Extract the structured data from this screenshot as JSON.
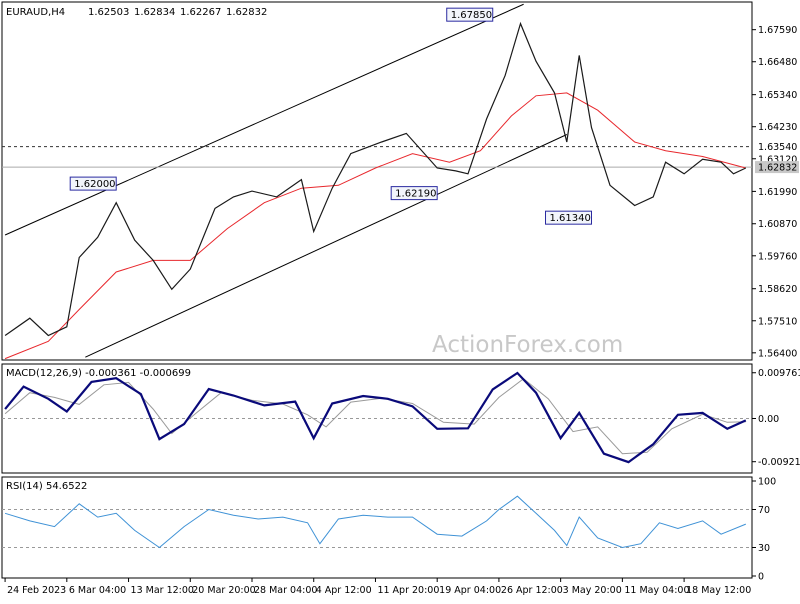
{
  "chart_data": {
    "type": "line",
    "header": {
      "symbol": "EURAUD,H4",
      "open": "1.62503",
      "high": "1.62834",
      "low": "1.62267",
      "close": "1.62832"
    },
    "watermark": "ActionForex.com",
    "price_panel": {
      "ylim": [
        1.5629,
        1.6841
      ],
      "yticks": [
        "1.67590",
        "1.66480",
        "1.65340",
        "1.64230",
        "1.63120",
        "1.61990",
        "1.60870",
        "1.59760",
        "1.58620",
        "1.57510",
        "1.56400"
      ],
      "price_labels": {
        "resistance": "1.63540",
        "last": "1.62832"
      },
      "resistance": 1.6354,
      "last": 1.62832,
      "callouts": [
        {
          "label": "1.67850",
          "x": 158,
          "value": 1.6785
        },
        {
          "label": "1.62000",
          "x": 36,
          "value": 1.62
        },
        {
          "label": "1.62190",
          "x": 140,
          "value": 1.6219
        },
        {
          "label": "1.61340",
          "x": 190,
          "value": 1.6134
        }
      ],
      "channel": {
        "upper": [
          [
            0,
            1.6048
          ],
          [
            168,
            1.6847
          ]
        ],
        "lower": [
          [
            26,
            1.5625
          ],
          [
            182,
            1.6396
          ]
        ]
      },
      "price": [
        {
          "x": 0,
          "value": 1.57
        },
        {
          "x": 8,
          "value": 1.576
        },
        {
          "x": 14,
          "value": 1.57
        },
        {
          "x": 20,
          "value": 1.573
        },
        {
          "x": 24,
          "value": 1.597
        },
        {
          "x": 30,
          "value": 1.604
        },
        {
          "x": 36,
          "value": 1.616
        },
        {
          "x": 42,
          "value": 1.603
        },
        {
          "x": 48,
          "value": 1.596
        },
        {
          "x": 54,
          "value": 1.586
        },
        {
          "x": 60,
          "value": 1.593
        },
        {
          "x": 68,
          "value": 1.614
        },
        {
          "x": 74,
          "value": 1.618
        },
        {
          "x": 80,
          "value": 1.62
        },
        {
          "x": 88,
          "value": 1.618
        },
        {
          "x": 96,
          "value": 1.624
        },
        {
          "x": 100,
          "value": 1.606
        },
        {
          "x": 106,
          "value": 1.621
        },
        {
          "x": 112,
          "value": 1.633
        },
        {
          "x": 122,
          "value": 1.637
        },
        {
          "x": 130,
          "value": 1.64
        },
        {
          "x": 140,
          "value": 1.628
        },
        {
          "x": 146,
          "value": 1.627
        },
        {
          "x": 150,
          "value": 1.626
        },
        {
          "x": 156,
          "value": 1.645
        },
        {
          "x": 162,
          "value": 1.66
        },
        {
          "x": 167,
          "value": 1.678
        },
        {
          "x": 172,
          "value": 1.665
        },
        {
          "x": 178,
          "value": 1.654
        },
        {
          "x": 182,
          "value": 1.637
        },
        {
          "x": 186,
          "value": 1.667
        },
        {
          "x": 190,
          "value": 1.642
        },
        {
          "x": 196,
          "value": 1.622
        },
        {
          "x": 204,
          "value": 1.615
        },
        {
          "x": 210,
          "value": 1.618
        },
        {
          "x": 214,
          "value": 1.63
        },
        {
          "x": 220,
          "value": 1.626
        },
        {
          "x": 226,
          "value": 1.631
        },
        {
          "x": 232,
          "value": 1.63
        },
        {
          "x": 236,
          "value": 1.626
        },
        {
          "x": 240,
          "value": 1.628
        }
      ],
      "ma": [
        {
          "x": 0,
          "value": 1.562
        },
        {
          "x": 14,
          "value": 1.568
        },
        {
          "x": 24,
          "value": 1.579
        },
        {
          "x": 36,
          "value": 1.592
        },
        {
          "x": 48,
          "value": 1.596
        },
        {
          "x": 60,
          "value": 1.596
        },
        {
          "x": 72,
          "value": 1.607
        },
        {
          "x": 84,
          "value": 1.616
        },
        {
          "x": 96,
          "value": 1.621
        },
        {
          "x": 108,
          "value": 1.622
        },
        {
          "x": 120,
          "value": 1.628
        },
        {
          "x": 132,
          "value": 1.633
        },
        {
          "x": 144,
          "value": 1.63
        },
        {
          "x": 154,
          "value": 1.634
        },
        {
          "x": 164,
          "value": 1.646
        },
        {
          "x": 172,
          "value": 1.653
        },
        {
          "x": 182,
          "value": 1.654
        },
        {
          "x": 192,
          "value": 1.648
        },
        {
          "x": 204,
          "value": 1.637
        },
        {
          "x": 214,
          "value": 1.634
        },
        {
          "x": 226,
          "value": 1.632
        },
        {
          "x": 240,
          "value": 1.628
        }
      ]
    },
    "macd_panel": {
      "label": "MACD(12,26,9) -0.000361 -0.000699",
      "ylim": [
        -0.0112,
        0.0112
      ],
      "yticks": [
        "0.009761",
        "0.00",
        "-0.009216"
      ],
      "macd": [
        {
          "x": 0,
          "value": 0.002
        },
        {
          "x": 6,
          "value": 0.0068
        },
        {
          "x": 14,
          "value": 0.0042
        },
        {
          "x": 20,
          "value": 0.0015
        },
        {
          "x": 28,
          "value": 0.0078
        },
        {
          "x": 36,
          "value": 0.0086
        },
        {
          "x": 44,
          "value": 0.0052
        },
        {
          "x": 50,
          "value": -0.0044
        },
        {
          "x": 58,
          "value": -0.0012
        },
        {
          "x": 66,
          "value": 0.0063
        },
        {
          "x": 74,
          "value": 0.0049
        },
        {
          "x": 84,
          "value": 0.0028
        },
        {
          "x": 94,
          "value": 0.0036
        },
        {
          "x": 100,
          "value": -0.0042
        },
        {
          "x": 106,
          "value": 0.0032
        },
        {
          "x": 116,
          "value": 0.0048
        },
        {
          "x": 124,
          "value": 0.0042
        },
        {
          "x": 132,
          "value": 0.0026
        },
        {
          "x": 140,
          "value": -0.0022
        },
        {
          "x": 150,
          "value": -0.0021
        },
        {
          "x": 158,
          "value": 0.0062
        },
        {
          "x": 166,
          "value": 0.0097
        },
        {
          "x": 172,
          "value": 0.0055
        },
        {
          "x": 180,
          "value": -0.0042
        },
        {
          "x": 186,
          "value": 0.0012
        },
        {
          "x": 194,
          "value": -0.0075
        },
        {
          "x": 202,
          "value": -0.0093
        },
        {
          "x": 210,
          "value": -0.0055
        },
        {
          "x": 218,
          "value": 0.0008
        },
        {
          "x": 226,
          "value": 0.0012
        },
        {
          "x": 234,
          "value": -0.0022
        },
        {
          "x": 240,
          "value": -0.0004
        }
      ],
      "signal": [
        {
          "x": 0,
          "value": 0.001
        },
        {
          "x": 8,
          "value": 0.0055
        },
        {
          "x": 16,
          "value": 0.0045
        },
        {
          "x": 24,
          "value": 0.003
        },
        {
          "x": 32,
          "value": 0.0072
        },
        {
          "x": 40,
          "value": 0.0077
        },
        {
          "x": 48,
          "value": 0.002
        },
        {
          "x": 54,
          "value": -0.0032
        },
        {
          "x": 62,
          "value": 0.0012
        },
        {
          "x": 70,
          "value": 0.0055
        },
        {
          "x": 80,
          "value": 0.0039
        },
        {
          "x": 90,
          "value": 0.0031
        },
        {
          "x": 98,
          "value": 0.0008
        },
        {
          "x": 104,
          "value": -0.0018
        },
        {
          "x": 112,
          "value": 0.0035
        },
        {
          "x": 122,
          "value": 0.0043
        },
        {
          "x": 132,
          "value": 0.0032
        },
        {
          "x": 142,
          "value": -0.0008
        },
        {
          "x": 152,
          "value": -0.0012
        },
        {
          "x": 160,
          "value": 0.0045
        },
        {
          "x": 168,
          "value": 0.0085
        },
        {
          "x": 176,
          "value": 0.0042
        },
        {
          "x": 184,
          "value": -0.0028
        },
        {
          "x": 192,
          "value": -0.0018
        },
        {
          "x": 200,
          "value": -0.0075
        },
        {
          "x": 208,
          "value": -0.0072
        },
        {
          "x": 216,
          "value": -0.0022
        },
        {
          "x": 226,
          "value": 0.0009
        },
        {
          "x": 234,
          "value": -0.0008
        },
        {
          "x": 240,
          "value": -0.0007
        }
      ]
    },
    "rsi_panel": {
      "label": "RSI(14) 54.6522",
      "ylim": [
        0,
        100
      ],
      "yticks": [
        "100",
        "70",
        "30",
        "0"
      ],
      "levels": [
        70,
        30
      ],
      "rsi": [
        {
          "x": 0,
          "value": 66
        },
        {
          "x": 8,
          "value": 58
        },
        {
          "x": 16,
          "value": 52
        },
        {
          "x": 24,
          "value": 76
        },
        {
          "x": 30,
          "value": 62
        },
        {
          "x": 36,
          "value": 66
        },
        {
          "x": 42,
          "value": 48
        },
        {
          "x": 50,
          "value": 30
        },
        {
          "x": 58,
          "value": 52
        },
        {
          "x": 66,
          "value": 70
        },
        {
          "x": 74,
          "value": 64
        },
        {
          "x": 82,
          "value": 60
        },
        {
          "x": 90,
          "value": 62
        },
        {
          "x": 98,
          "value": 56
        },
        {
          "x": 102,
          "value": 34
        },
        {
          "x": 108,
          "value": 60
        },
        {
          "x": 116,
          "value": 64
        },
        {
          "x": 124,
          "value": 62
        },
        {
          "x": 132,
          "value": 62
        },
        {
          "x": 140,
          "value": 44
        },
        {
          "x": 148,
          "value": 42
        },
        {
          "x": 156,
          "value": 58
        },
        {
          "x": 160,
          "value": 70
        },
        {
          "x": 166,
          "value": 84
        },
        {
          "x": 172,
          "value": 66
        },
        {
          "x": 178,
          "value": 48
        },
        {
          "x": 182,
          "value": 32
        },
        {
          "x": 186,
          "value": 62
        },
        {
          "x": 192,
          "value": 40
        },
        {
          "x": 200,
          "value": 30
        },
        {
          "x": 206,
          "value": 34
        },
        {
          "x": 212,
          "value": 56
        },
        {
          "x": 218,
          "value": 50
        },
        {
          "x": 226,
          "value": 58
        },
        {
          "x": 232,
          "value": 44
        },
        {
          "x": 240,
          "value": 54.65
        }
      ]
    },
    "x_axis": {
      "tick_labels": [
        "24 Feb 2023",
        "6 Mar 04:00",
        "13 Mar 12:00",
        "20 Mar 20:00",
        "28 Mar 04:00",
        "4 Apr 12:00",
        "11 Apr 20:00",
        "19 Apr 04:00",
        "26 Apr 12:00",
        "3 May 20:00",
        "11 May 04:00",
        "18 May 12:00"
      ],
      "tick_x": [
        0,
        20,
        40,
        60,
        80,
        100,
        120,
        140,
        160,
        180,
        200,
        220
      ],
      "xlim": [
        -1,
        242
      ]
    },
    "colors": {
      "price": "#1a1a1a",
      "ma": "#e8282d",
      "macd": "#0a0a7a",
      "signal": "#9a9a9a",
      "rsi": "#3f92d6",
      "callout_fill": "#f2f5fb",
      "callout_border": "#2a2aa0",
      "last_box": "#c8c8c8"
    }
  }
}
